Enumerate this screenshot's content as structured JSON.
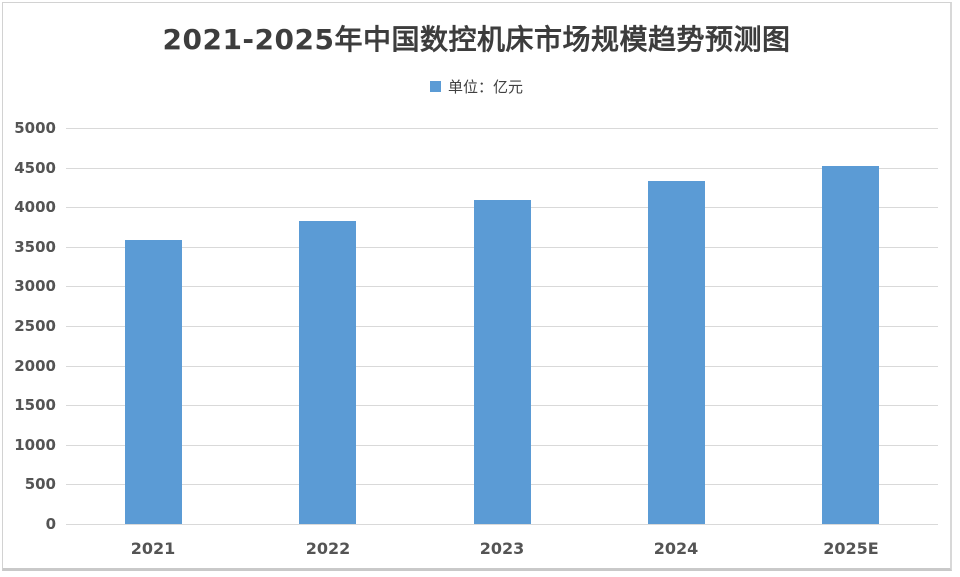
{
  "page": {
    "title": "2021-2025年中国数控机床市场规模趋势预测图",
    "legend_label": "单位：亿元"
  },
  "chart_data": {
    "type": "bar",
    "title": "2021-2025年中国数控机床市场规模趋势预测图",
    "legend": {
      "label": "单位：亿元",
      "position": "top-center"
    },
    "unit": "亿元",
    "categories": [
      "2021",
      "2022",
      "2023",
      "2024",
      "2025E"
    ],
    "values": [
      3589,
      3825,
      4090,
      4325,
      4520
    ],
    "xlabel": "",
    "ylabel": "",
    "ylim": [
      0,
      5000
    ],
    "ytick_step": 500,
    "yticks": [
      0,
      500,
      1000,
      1500,
      2000,
      2500,
      3000,
      3500,
      4000,
      4500,
      5000
    ],
    "grid": true,
    "colors": {
      "bar": "#5b9bd5",
      "gridline": "#d9d9d9",
      "axis_label": "#545454",
      "title": "#3d3d3d",
      "background": "#ffffff"
    }
  }
}
